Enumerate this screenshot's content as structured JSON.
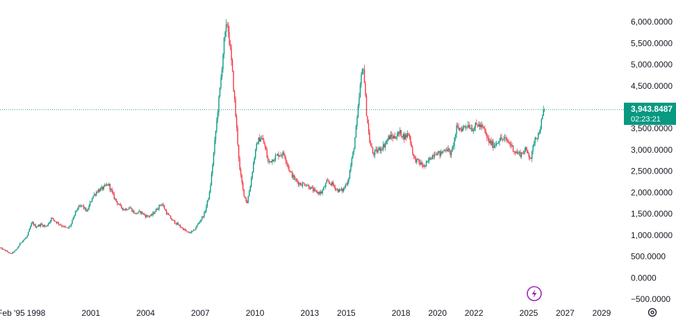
{
  "chart_data": {
    "type": "candlestick",
    "title": "",
    "xlabel": "",
    "ylabel": "",
    "ylim": [
      -500,
      6400
    ],
    "xlim": [
      1995.0,
      2030.0
    ],
    "grid": false,
    "y_ticks": [
      {
        "value": 6000,
        "label": "6,000.0000"
      },
      {
        "value": 5500,
        "label": "5,500.0000"
      },
      {
        "value": 5000,
        "label": "5,000.0000"
      },
      {
        "value": 4500,
        "label": "4,500.0000"
      },
      {
        "value": 4000,
        "label": "4,000.0000"
      },
      {
        "value": 3500,
        "label": "3,500.0000"
      },
      {
        "value": 3000,
        "label": "3,000.0000"
      },
      {
        "value": 2500,
        "label": "2,500.0000"
      },
      {
        "value": 2000,
        "label": "2,000.0000"
      },
      {
        "value": 1500,
        "label": "1,500.0000"
      },
      {
        "value": 1000,
        "label": "1,000.0000"
      },
      {
        "value": 500,
        "label": "500.0000"
      },
      {
        "value": 0,
        "label": "0.0000"
      },
      {
        "value": -500,
        "label": "−500.0000"
      }
    ],
    "x_ticks": [
      {
        "value": 1995.1,
        "label": "Feb '95"
      },
      {
        "value": 1998,
        "label": "1998"
      },
      {
        "value": 2001,
        "label": "2001"
      },
      {
        "value": 2004,
        "label": "2004"
      },
      {
        "value": 2007,
        "label": "2007"
      },
      {
        "value": 2010,
        "label": "2010"
      },
      {
        "value": 2013,
        "label": "2013"
      },
      {
        "value": 2015,
        "label": "2015"
      },
      {
        "value": 2018,
        "label": "2018"
      },
      {
        "value": 2020,
        "label": "2020"
      },
      {
        "value": 2022,
        "label": "2022"
      },
      {
        "value": 2025,
        "label": "2025"
      },
      {
        "value": 2027,
        "label": "2027"
      },
      {
        "value": 2029,
        "label": "2029"
      }
    ],
    "series": [
      {
        "x": [
          1995.0,
          1995.3,
          1995.6,
          1995.9,
          1996.2,
          1996.5,
          1996.8,
          1997.0,
          1997.3,
          1997.6,
          1997.9,
          1998.2,
          1998.5,
          1998.8,
          1999.0,
          1999.3,
          1999.6,
          1999.9,
          2000.2,
          2000.5,
          2000.8,
          2001.1,
          2001.4,
          2001.7,
          2002.0,
          2002.3,
          2002.6,
          2002.9,
          2003.2,
          2003.5,
          2003.8,
          2004.1,
          2004.4,
          2004.7,
          2005.0,
          2005.3,
          2005.6,
          2005.9,
          2006.2,
          2006.5,
          2006.8,
          2007.0,
          2007.2,
          2007.4,
          2007.6,
          2007.8,
          2007.95,
          2008.1,
          2008.3,
          2008.5,
          2008.7,
          2008.9,
          2009.1,
          2009.3,
          2009.5,
          2009.7,
          2009.9,
          2010.1,
          2010.4,
          2010.7,
          2011.0,
          2011.3,
          2011.6,
          2011.9,
          2012.2,
          2012.5,
          2012.8,
          2013.1,
          2013.4,
          2013.7,
          2014.0,
          2014.3,
          2014.6,
          2014.9,
          2015.1,
          2015.3,
          2015.45,
          2015.6,
          2015.8,
          2016.0,
          2016.3,
          2016.6,
          2016.9,
          2017.2,
          2017.5,
          2017.8,
          2018.0,
          2018.3,
          2018.6,
          2018.9,
          2019.2,
          2019.5,
          2019.8,
          2020.1,
          2020.4,
          2020.7,
          2021.0,
          2021.3,
          2021.6,
          2021.9,
          2022.2,
          2022.5,
          2022.8,
          2023.1,
          2023.4,
          2023.7,
          2024.0,
          2024.3,
          2024.6,
          2024.9,
          2025.1,
          2025.3,
          2025.5,
          2025.65
        ],
        "close": [
          700,
          640,
          560,
          650,
          850,
          950,
          1300,
          1200,
          1250,
          1200,
          1400,
          1300,
          1220,
          1150,
          1250,
          1600,
          1700,
          1550,
          1900,
          2050,
          2100,
          2200,
          1900,
          1700,
          1600,
          1650,
          1500,
          1550,
          1450,
          1450,
          1600,
          1750,
          1500,
          1350,
          1250,
          1150,
          1050,
          1100,
          1300,
          1500,
          2000,
          2800,
          3700,
          4500,
          5500,
          6000,
          5400,
          4700,
          3600,
          2500,
          2000,
          1750,
          2200,
          2800,
          3200,
          3300,
          3100,
          2700,
          2800,
          2900,
          2900,
          2500,
          2300,
          2200,
          2200,
          2100,
          2000,
          2000,
          2250,
          2200,
          2050,
          2050,
          2300,
          3000,
          3700,
          4600,
          5000,
          4000,
          3200,
          2900,
          3000,
          3100,
          3300,
          3300,
          3400,
          3300,
          3400,
          2800,
          2700,
          2600,
          2800,
          2950,
          2900,
          3050,
          2900,
          3500,
          3500,
          3600,
          3500,
          3600,
          3500,
          3200,
          3100,
          3250,
          3250,
          3150,
          2950,
          2900,
          3000,
          2800,
          3300,
          3350,
          3700,
          3944
        ]
      }
    ],
    "last_price": {
      "label": "3,943.8487",
      "countdown": "02:23:21"
    },
    "colors": {
      "up": "#089981",
      "down": "#f23645",
      "last_price": "#089981"
    }
  }
}
